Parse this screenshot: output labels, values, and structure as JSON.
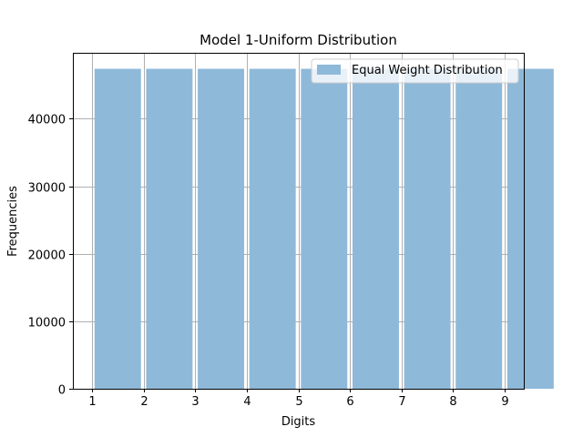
{
  "chart_data": {
    "type": "bar",
    "title": "Model 1-Uniform Distribution",
    "xlabel": "Digits",
    "ylabel": "Frequencies",
    "categories": [
      "1",
      "2",
      "3",
      "4",
      "5",
      "6",
      "7",
      "8",
      "9"
    ],
    "series": [
      {
        "name": "Equal Weight Distribution",
        "values": [
          47400,
          47400,
          47400,
          47400,
          47400,
          47400,
          47400,
          47400,
          47400
        ],
        "color": "#8fb9d9"
      }
    ],
    "x_ticks": [
      1,
      2,
      3,
      4,
      5,
      6,
      7,
      8,
      9
    ],
    "x_tick_labels": [
      "1",
      "2",
      "3",
      "4",
      "5",
      "6",
      "7",
      "8",
      "9"
    ],
    "y_ticks": [
      0,
      10000,
      20000,
      30000,
      40000
    ],
    "y_tick_labels": [
      "0",
      "10000",
      "20000",
      "30000",
      "40000"
    ],
    "xlim": [
      0.63,
      9.37
    ],
    "ylim": [
      0,
      49770
    ],
    "grid": true,
    "legend_position": "top-right"
  }
}
